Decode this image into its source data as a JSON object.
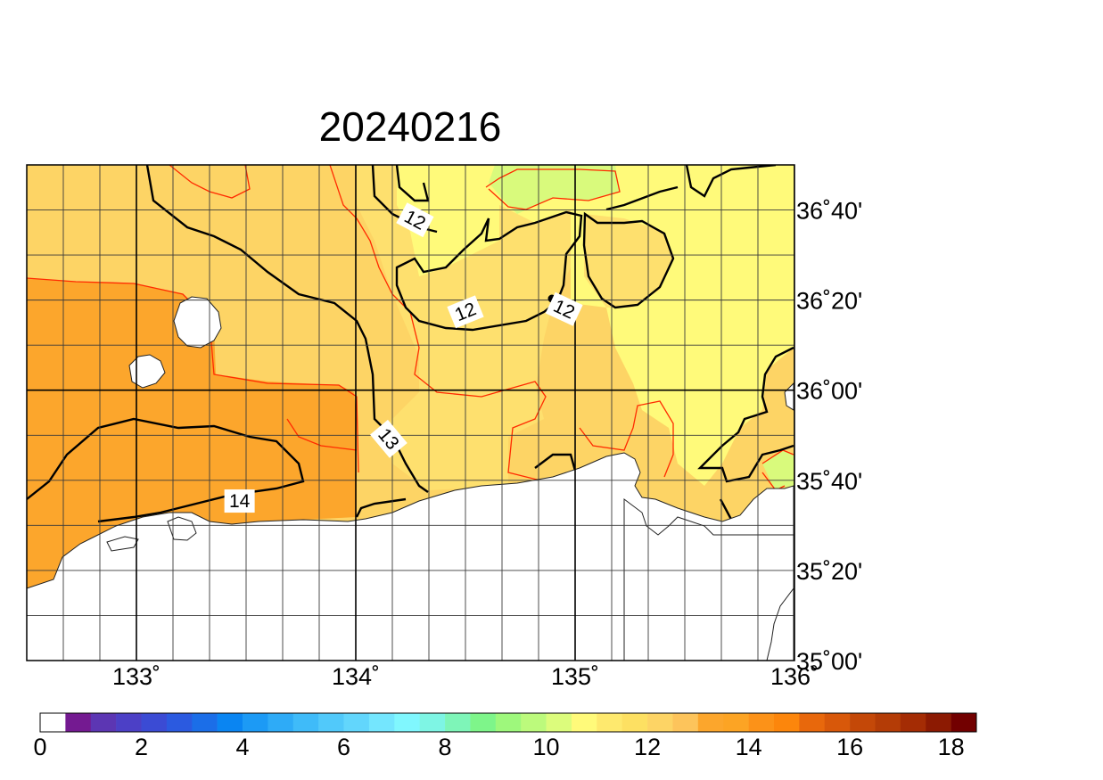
{
  "title": "20240216",
  "map": {
    "lon_range": [
      132.5,
      136.0
    ],
    "lat_range": [
      35.0,
      36.8333
    ],
    "lon_ticks": [
      {
        "value": 133,
        "label": "133˚"
      },
      {
        "value": 134,
        "label": "134˚"
      },
      {
        "value": 135,
        "label": "135˚"
      },
      {
        "value": 136,
        "label": "136˚"
      }
    ],
    "lat_ticks": [
      {
        "value": 36.6667,
        "label": "36˚40'"
      },
      {
        "value": 36.3333,
        "label": "36˚20'"
      },
      {
        "value": 36.0,
        "label": "36˚00'"
      },
      {
        "value": 35.6667,
        "label": "35˚40'"
      },
      {
        "value": 35.3333,
        "label": "35˚20'"
      },
      {
        "value": 35.0,
        "label": "35˚00'"
      }
    ],
    "contour_labels": [
      {
        "text": "12",
        "lon": 134.27,
        "lat": 36.63,
        "angle": 28
      },
      {
        "text": "12",
        "lon": 134.5,
        "lat": 36.29,
        "angle": -22
      },
      {
        "text": "12",
        "lon": 134.95,
        "lat": 36.3,
        "angle": 25
      },
      {
        "text": "13",
        "lon": 134.15,
        "lat": 35.82,
        "angle": 50
      },
      {
        "text": "14",
        "lon": 133.47,
        "lat": 35.59,
        "angle": 0
      }
    ],
    "colors": {
      "land": "#ffffff",
      "sst_17_18": "#fdc45b",
      "sst_18_19": "#fdd465",
      "sst_19_20": "#fee06e",
      "sst_20_21": "#fffa7a",
      "sst_21_22": "#d9fa7c",
      "sst_warm": "#fca62c",
      "contour_major": "#000000",
      "contour_minor": "#ff2a00"
    }
  },
  "colorbar": {
    "colors": [
      "#ffffff",
      "#741a91",
      "#5c36b3",
      "#4c40c6",
      "#3b4bd4",
      "#2b5ae0",
      "#1b6ee8",
      "#0a85f2",
      "#1c9af5",
      "#2eabf7",
      "#3fbbf9",
      "#51c9fa",
      "#62d6fc",
      "#74e6fe",
      "#80f7fe",
      "#7ef5e4",
      "#7ef5b8",
      "#7ef58a",
      "#9ef87c",
      "#bcfa7c",
      "#dcfc7c",
      "#fffa7a",
      "#fee96e",
      "#fde062",
      "#fdd465",
      "#fdc45b",
      "#fca62c",
      "#fca424",
      "#fc9218",
      "#fc860c",
      "#e8680c",
      "#d8580a",
      "#c44808",
      "#b43c06",
      "#a42c04",
      "#8c1a02",
      "#720000"
    ],
    "ticks": [
      {
        "value": 0,
        "label": "0"
      },
      {
        "value": 2,
        "label": "2"
      },
      {
        "value": 4,
        "label": "4"
      },
      {
        "value": 6,
        "label": "6"
      },
      {
        "value": 8,
        "label": "8"
      },
      {
        "value": 10,
        "label": "10"
      },
      {
        "value": 12,
        "label": "12"
      },
      {
        "value": 14,
        "label": "14"
      },
      {
        "value": 16,
        "label": "16"
      },
      {
        "value": 18,
        "label": "18"
      }
    ],
    "min": 0,
    "max": 18.5
  }
}
